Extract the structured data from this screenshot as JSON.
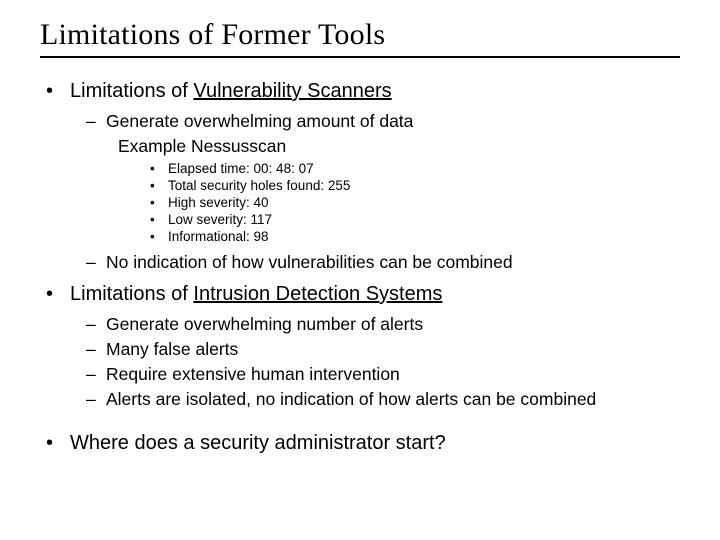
{
  "title": "Limitations of Former Tools",
  "sections": [
    {
      "prefix": "Limitations of ",
      "underlined": "Vulnerability Scanners",
      "children": [
        {
          "text": "Generate overwhelming amount of data",
          "example_label": "Example Nessusscan",
          "details": [
            "Elapsed time: 00: 48: 07",
            "Total security holes found: 255",
            "High severity: 40",
            "Low severity: 117",
            "Informational: 98"
          ]
        },
        {
          "text": "No indication of how vulnerabilities can be combined"
        }
      ]
    },
    {
      "prefix": "Limitations of ",
      "underlined": "Intrusion Detection Systems",
      "children": [
        {
          "text": "Generate overwhelming number of alerts"
        },
        {
          "text": "Many false alerts"
        },
        {
          "text": "Require extensive human intervention"
        },
        {
          "text": "Alerts are isolated, no indication of how alerts can be combined"
        }
      ]
    },
    {
      "prefix": "Where does a security administrator start?"
    }
  ],
  "bullets": {
    "lvl1": "•",
    "lvl2": "–",
    "lvl3": "•"
  }
}
